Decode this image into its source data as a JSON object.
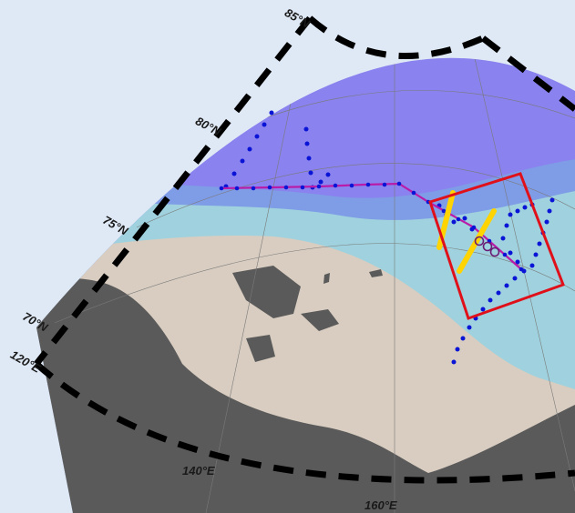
{
  "map": {
    "projection": "polar stereographic",
    "lat_labels": [
      "85°N",
      "80°N",
      "75°N",
      "70°N"
    ],
    "lon_labels": [
      "120°E",
      "140°E",
      "160°E"
    ],
    "colors": {
      "page_background": "#dfe9f6",
      "deep_ocean": "#8a82ee",
      "slope": "#7f9ce6",
      "shelf": "#9fd2de",
      "land": "#d8cdc0",
      "mask": "#5a5a5a",
      "frame": "#000000",
      "graticule": "#7a7a7a"
    }
  },
  "overlays": {
    "stations": {
      "color": "#0a14d6",
      "shape": "dots"
    },
    "track": {
      "color": "#b81ca8",
      "shape": "line"
    },
    "highlight_box": {
      "color": "#e0101a",
      "shape": "rectangle"
    },
    "yellow_sections": {
      "color": "#ffd400",
      "shape": "thick segments"
    },
    "markers": {
      "color": "#6a1c74",
      "shape": "open circles"
    }
  }
}
